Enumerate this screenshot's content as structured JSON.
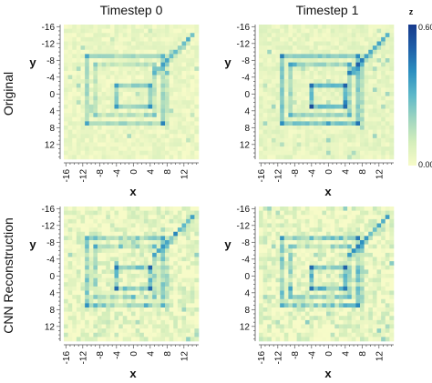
{
  "chart_data": {
    "type": "heatmap",
    "column_titles": [
      "Timestep 0",
      "Timestep 1"
    ],
    "row_titles": [
      "Original",
      "CNN Reconstruction"
    ],
    "xlabel": "x",
    "ylabel": "y",
    "x_ticks": [
      -16,
      -12,
      -8,
      -4,
      0,
      4,
      8,
      12
    ],
    "y_ticks": [
      -16,
      -12,
      -8,
      -4,
      0,
      4,
      8,
      12
    ],
    "x_range": [
      -16,
      15
    ],
    "y_range": [
      -16,
      15
    ],
    "y_inverted": true,
    "grid": false,
    "colorbar": {
      "title": "z",
      "min_label": "0.00",
      "max_label": "0.60",
      "min": 0.0,
      "max": 0.6,
      "colors": [
        "#f7fbc8",
        "#d4eebb",
        "#9ed5c0",
        "#5db8c9",
        "#2c8fc0",
        "#1f5fa8",
        "#173a8c"
      ]
    },
    "panels": [
      {
        "row": "Original",
        "column": "Timestep 0",
        "intensity": 0.85,
        "noise": 0.04
      },
      {
        "row": "Original",
        "column": "Timestep 1",
        "intensity": 1.15,
        "noise": 0.04
      },
      {
        "row": "CNN Reconstruction",
        "column": "Timestep 0",
        "intensity": 0.95,
        "noise": 0.09
      },
      {
        "row": "CNN Reconstruction",
        "column": "Timestep 1",
        "intensity": 1.05,
        "noise": 0.09
      }
    ]
  }
}
